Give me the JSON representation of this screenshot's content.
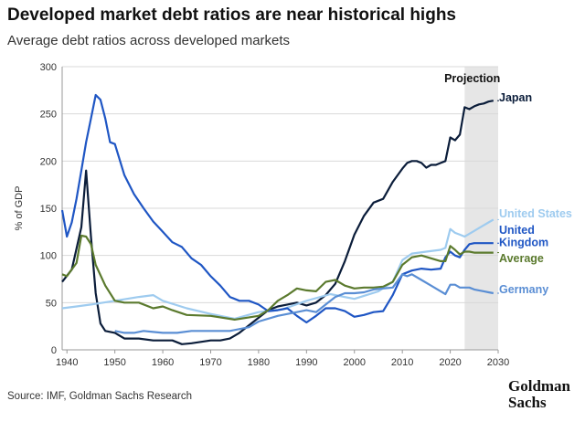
{
  "title": "Developed market debt ratios are near historical highs",
  "subtitle": "Average debt ratios across developed markets",
  "source": "Source: IMF, Goldman Sachs Research",
  "logo": {
    "line1": "Goldman",
    "line2": "Sachs"
  },
  "chart_data": {
    "type": "line",
    "ylabel": "% of GDP",
    "xlim": [
      1939,
      2030
    ],
    "ylim": [
      0,
      300
    ],
    "x_ticks": [
      1940,
      1950,
      1960,
      1970,
      1980,
      1990,
      2000,
      2010,
      2020,
      2030
    ],
    "y_ticks": [
      0,
      50,
      100,
      150,
      200,
      250,
      300
    ],
    "grid": "horizontal",
    "projection": {
      "label": "Projection",
      "start": 2023,
      "end": 2030,
      "color": "#e6e6e6"
    },
    "series": [
      {
        "name": "Japan",
        "color": "#0b1d3a",
        "label_lines": [
          "Japan"
        ],
        "x": [
          1939,
          1941,
          1943,
          1944,
          1945,
          1946,
          1947,
          1948,
          1950,
          1952,
          1955,
          1958,
          1960,
          1962,
          1964,
          1966,
          1970,
          1972,
          1974,
          1976,
          1978,
          1980,
          1982,
          1984,
          1986,
          1988,
          1990,
          1992,
          1994,
          1996,
          1998,
          2000,
          2002,
          2004,
          2006,
          2008,
          2010,
          2011,
          2012,
          2013,
          2014,
          2015,
          2016,
          2017,
          2018,
          2019,
          2020,
          2021,
          2022,
          2023,
          2024,
          2025,
          2026,
          2027,
          2028,
          2029
        ],
        "values": [
          72,
          85,
          130,
          190,
          120,
          60,
          28,
          20,
          18,
          12,
          12,
          10,
          10,
          10,
          6,
          7,
          10,
          10,
          12,
          18,
          26,
          34,
          42,
          46,
          48,
          50,
          47,
          50,
          58,
          70,
          94,
          122,
          142,
          156,
          160,
          178,
          192,
          198,
          200,
          200,
          198,
          193,
          196,
          196,
          198,
          200,
          225,
          222,
          228,
          257,
          255,
          258,
          260,
          261,
          263,
          264
        ]
      },
      {
        "name": "United States",
        "color": "#9ecbef",
        "label_lines": [
          "United States"
        ],
        "x": [
          1939,
          1942,
          1945,
          1950,
          1955,
          1958,
          1960,
          1965,
          1970,
          1975,
          1980,
          1985,
          1990,
          1995,
          2000,
          2005,
          2008,
          2010,
          2012,
          2015,
          2018,
          2019,
          2020,
          2021,
          2022,
          2023,
          2024,
          2025,
          2026,
          2027,
          2028,
          2029
        ],
        "values": [
          44,
          46,
          48,
          52,
          56,
          58,
          52,
          44,
          38,
          33,
          40,
          43,
          52,
          59,
          54,
          62,
          72,
          95,
          102,
          104,
          106,
          108,
          128,
          124,
          122,
          120,
          123,
          126,
          129,
          132,
          135,
          138
        ]
      },
      {
        "name": "United Kingdom",
        "color": "#1f56c4",
        "label_lines": [
          "United",
          "Kingdom"
        ],
        "x": [
          1939,
          1940,
          1941,
          1942,
          1943,
          1944,
          1945,
          1946,
          1947,
          1948,
          1949,
          1950,
          1952,
          1954,
          1956,
          1958,
          1960,
          1962,
          1964,
          1966,
          1968,
          1970,
          1972,
          1974,
          1976,
          1978,
          1980,
          1982,
          1984,
          1986,
          1988,
          1990,
          1992,
          1994,
          1996,
          1998,
          2000,
          2002,
          2004,
          2006,
          2008,
          2010,
          2012,
          2014,
          2016,
          2018,
          2019,
          2020,
          2021,
          2022,
          2023,
          2024,
          2025,
          2026,
          2027,
          2028,
          2029
        ],
        "values": [
          148,
          120,
          135,
          160,
          190,
          220,
          245,
          270,
          265,
          245,
          220,
          218,
          185,
          165,
          150,
          136,
          125,
          114,
          109,
          97,
          90,
          78,
          68,
          56,
          52,
          52,
          48,
          41,
          42,
          44,
          36,
          29,
          36,
          44,
          44,
          41,
          35,
          37,
          40,
          41,
          58,
          80,
          84,
          86,
          85,
          86,
          98,
          104,
          100,
          98,
          106,
          112,
          113,
          113,
          113,
          113,
          113
        ]
      },
      {
        "name": "Average",
        "color": "#5b7a2e",
        "label_lines": [
          "Average"
        ],
        "x": [
          1939,
          1940,
          1942,
          1943,
          1944,
          1945,
          1946,
          1948,
          1950,
          1952,
          1955,
          1958,
          1960,
          1962,
          1965,
          1970,
          1975,
          1980,
          1982,
          1984,
          1986,
          1988,
          1990,
          1992,
          1994,
          1996,
          1998,
          2000,
          2002,
          2004,
          2006,
          2008,
          2010,
          2012,
          2014,
          2016,
          2018,
          2019,
          2020,
          2021,
          2022,
          2023,
          2024,
          2025,
          2026,
          2027,
          2028,
          2029
        ],
        "values": [
          80,
          78,
          92,
          121,
          120,
          112,
          90,
          68,
          52,
          50,
          50,
          44,
          46,
          42,
          37,
          36,
          32,
          36,
          42,
          52,
          58,
          65,
          63,
          62,
          72,
          74,
          68,
          65,
          66,
          66,
          67,
          72,
          90,
          98,
          100,
          97,
          94,
          94,
          110,
          106,
          101,
          104,
          104,
          103,
          103,
          103,
          103,
          103
        ]
      },
      {
        "name": "Germany",
        "color": "#5a8ed4",
        "label_lines": [
          "Germany"
        ],
        "x": [
          1950,
          1952,
          1954,
          1956,
          1958,
          1960,
          1963,
          1966,
          1970,
          1974,
          1978,
          1980,
          1984,
          1988,
          1990,
          1992,
          1994,
          1996,
          1998,
          2000,
          2002,
          2004,
          2006,
          2008,
          2010,
          2011,
          2012,
          2014,
          2016,
          2018,
          2019,
          2020,
          2021,
          2022,
          2023,
          2024,
          2025,
          2026,
          2027,
          2028,
          2029
        ],
        "values": [
          20,
          18,
          18,
          20,
          19,
          18,
          18,
          20,
          20,
          20,
          24,
          30,
          36,
          40,
          42,
          40,
          48,
          56,
          60,
          60,
          61,
          64,
          65,
          66,
          80,
          78,
          80,
          74,
          68,
          62,
          59,
          69,
          69,
          66,
          66,
          66,
          64,
          63,
          62,
          61,
          60
        ]
      }
    ]
  }
}
